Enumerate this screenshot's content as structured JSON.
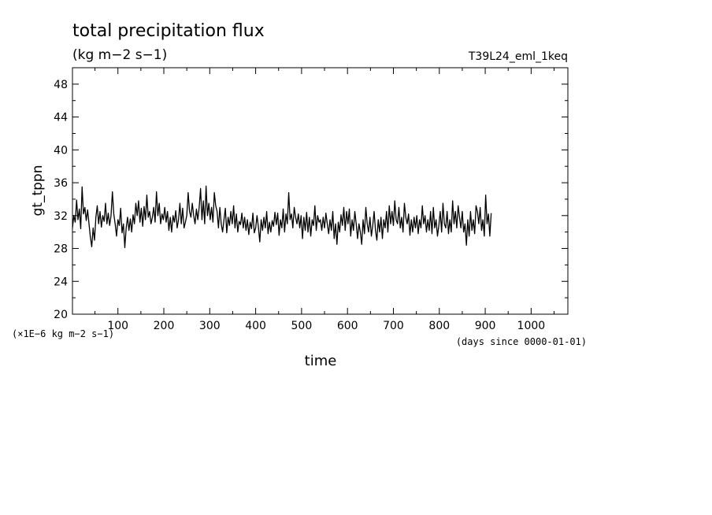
{
  "chart_data": {
    "type": "line",
    "title": "total precipitation flux",
    "units": "(kg m−2 s−1)",
    "experiment": "T39L24_eml_1keq",
    "ylabel": "gt_tppn",
    "xlabel": "time",
    "xunits": "(days since 0000-01-01)",
    "yscale_note": "(×1E−6 kg m−2 s−1)",
    "xlim": [
      1,
      1080
    ],
    "ylim": [
      20,
      50
    ],
    "xticks": [
      100,
      200,
      300,
      400,
      500,
      600,
      700,
      800,
      900,
      1000
    ],
    "yticks": [
      20,
      24,
      28,
      32,
      36,
      40,
      44,
      48
    ],
    "grid": false,
    "series": [
      {
        "x_start": 1,
        "x_step": 3,
        "values": [
          30.5,
          32.0,
          31.2,
          33.9,
          31.5,
          32.8,
          30.4,
          35.5,
          32.2,
          33.0,
          31.4,
          32.7,
          31.0,
          29.4,
          28.2,
          30.5,
          29.0,
          31.8,
          33.2,
          31.0,
          32.5,
          30.6,
          32.0,
          31.3,
          33.5,
          31.0,
          32.3,
          30.8,
          32.0,
          34.9,
          32.2,
          31.0,
          29.5,
          31.5,
          30.8,
          32.9,
          29.9,
          31.0,
          28.1,
          30.5,
          31.8,
          30.2,
          31.6,
          30.0,
          32.1,
          31.0,
          33.5,
          32.0,
          33.8,
          31.2,
          32.9,
          30.7,
          33.1,
          31.5,
          34.5,
          31.8,
          32.5,
          31.0,
          31.8,
          33.0,
          31.2,
          34.9,
          32.0,
          33.5,
          31.0,
          32.2,
          31.5,
          33.0,
          31.2,
          32.5,
          30.2,
          31.8,
          30.0,
          32.0,
          31.2,
          32.6,
          30.5,
          31.5,
          33.5,
          31.0,
          32.9,
          30.5,
          31.2,
          32.0,
          34.8,
          32.5,
          31.8,
          33.5,
          32.0,
          31.0,
          32.8,
          31.5,
          33.0,
          35.3,
          31.5,
          33.8,
          31.0,
          35.6,
          32.0,
          33.5,
          31.5,
          33.0,
          31.2,
          34.8,
          33.2,
          32.5,
          30.5,
          33.0,
          31.0,
          30.0,
          31.5,
          32.9,
          29.9,
          31.8,
          30.8,
          32.5,
          31.0,
          33.2,
          30.5,
          32.2,
          30.0,
          31.3,
          30.9,
          32.3,
          30.5,
          31.8,
          30.2,
          31.5,
          29.7,
          31.2,
          30.4,
          32.3,
          29.9,
          30.5,
          32.0,
          30.6,
          28.8,
          31.5,
          30.2,
          31.8,
          30.5,
          32.5,
          29.8,
          31.2,
          30.0,
          31.4,
          30.7,
          32.4,
          30.9,
          32.3,
          29.6,
          31.5,
          30.5,
          32.8,
          30.0,
          32.2,
          31.0,
          34.8,
          31.5,
          32.2,
          30.5,
          33.0,
          31.8,
          31.0,
          32.2,
          30.5,
          32.0,
          29.2,
          31.8,
          30.2,
          32.4,
          30.0,
          31.8,
          29.5,
          31.5,
          30.8,
          33.2,
          30.2,
          32.0,
          31.2,
          31.5,
          30.2,
          31.8,
          30.5,
          32.3,
          31.0,
          29.8,
          31.5,
          30.2,
          32.5,
          29.2,
          31.0,
          28.5,
          31.2,
          30.0,
          32.1,
          30.8,
          33.0,
          30.2,
          32.5,
          31.0,
          32.8,
          29.5,
          31.5,
          30.2,
          32.5,
          31.0,
          29.2,
          31.0,
          30.0,
          28.5,
          31.5,
          29.8,
          33.0,
          31.0,
          30.0,
          31.8,
          29.5,
          30.8,
          32.5,
          30.2,
          29.0,
          31.5,
          30.0,
          31.8,
          29.2,
          31.5,
          30.5,
          32.5,
          30.0,
          33.2,
          31.0,
          32.5,
          30.8,
          33.8,
          31.5,
          31.0,
          33.0,
          30.5,
          31.8,
          30.0,
          33.5,
          31.8,
          31.0,
          32.2,
          29.6,
          31.5,
          30.0,
          31.8,
          30.5,
          32.0,
          29.8,
          31.5,
          30.5,
          33.2,
          31.0,
          32.0,
          30.0,
          31.5,
          30.2,
          32.5,
          29.8,
          33.0,
          30.5,
          31.5,
          29.5,
          30.8,
          32.5,
          30.0,
          33.5,
          31.0,
          30.5,
          32.5,
          29.8,
          31.5,
          30.0,
          33.8,
          31.0,
          32.5,
          30.5,
          33.2,
          31.8,
          30.5,
          32.5,
          30.0,
          31.0,
          28.4,
          31.5,
          29.5,
          32.5,
          30.2,
          31.5,
          29.8,
          33.2,
          32.5,
          31.0,
          33.0,
          30.2,
          31.5,
          29.5,
          34.5,
          31.0,
          32.2,
          29.5,
          32.3
        ]
      }
    ]
  }
}
